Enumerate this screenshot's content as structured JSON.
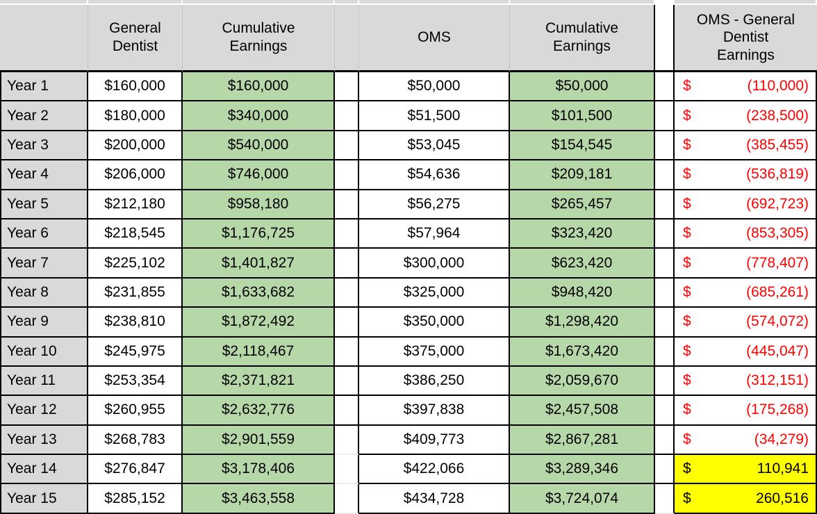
{
  "table": {
    "header": {
      "year": "",
      "general_dentist": "General\nDentist",
      "gd_cumulative": "Cumulative\nEarnings",
      "gap1": "",
      "oms": "OMS",
      "oms_cumulative": "Cumulative\nEarnings",
      "gap2": "",
      "difference": "OMS - General\nDentist\nEarnings"
    },
    "rows": [
      {
        "year": "Year 1",
        "gd": "$160,000",
        "gd_cum": "$160,000",
        "oms": "$50,000",
        "oms_cum": "$50,000",
        "diff_currency": "$",
        "diff": "(110,000)",
        "diff_negative": true
      },
      {
        "year": "Year 2",
        "gd": "$180,000",
        "gd_cum": "$340,000",
        "oms": "$51,500",
        "oms_cum": "$101,500",
        "diff_currency": "$",
        "diff": "(238,500)",
        "diff_negative": true
      },
      {
        "year": "Year 3",
        "gd": "$200,000",
        "gd_cum": "$540,000",
        "oms": "$53,045",
        "oms_cum": "$154,545",
        "diff_currency": "$",
        "diff": "(385,455)",
        "diff_negative": true
      },
      {
        "year": "Year 4",
        "gd": "$206,000",
        "gd_cum": "$746,000",
        "oms": "$54,636",
        "oms_cum": "$209,181",
        "diff_currency": "$",
        "diff": "(536,819)",
        "diff_negative": true
      },
      {
        "year": "Year 5",
        "gd": "$212,180",
        "gd_cum": "$958,180",
        "oms": "$56,275",
        "oms_cum": "$265,457",
        "diff_currency": "$",
        "diff": "(692,723)",
        "diff_negative": true
      },
      {
        "year": "Year 6",
        "gd": "$218,545",
        "gd_cum": "$1,176,725",
        "oms": "$57,964",
        "oms_cum": "$323,420",
        "diff_currency": "$",
        "diff": "(853,305)",
        "diff_negative": true
      },
      {
        "year": "Year 7",
        "gd": "$225,102",
        "gd_cum": "$1,401,827",
        "oms": "$300,000",
        "oms_cum": "$623,420",
        "diff_currency": "$",
        "diff": "(778,407)",
        "diff_negative": true
      },
      {
        "year": "Year 8",
        "gd": "$231,855",
        "gd_cum": "$1,633,682",
        "oms": "$325,000",
        "oms_cum": "$948,420",
        "diff_currency": "$",
        "diff": "(685,261)",
        "diff_negative": true
      },
      {
        "year": "Year 9",
        "gd": "$238,810",
        "gd_cum": "$1,872,492",
        "oms": "$350,000",
        "oms_cum": "$1,298,420",
        "diff_currency": "$",
        "diff": "(574,072)",
        "diff_negative": true
      },
      {
        "year": "Year 10",
        "gd": "$245,975",
        "gd_cum": "$2,118,467",
        "oms": "$375,000",
        "oms_cum": "$1,673,420",
        "diff_currency": "$",
        "diff": "(445,047)",
        "diff_negative": true
      },
      {
        "year": "Year 11",
        "gd": "$253,354",
        "gd_cum": "$2,371,821",
        "oms": "$386,250",
        "oms_cum": "$2,059,670",
        "diff_currency": "$",
        "diff": "(312,151)",
        "diff_negative": true
      },
      {
        "year": "Year 12",
        "gd": "$260,955",
        "gd_cum": "$2,632,776",
        "oms": "$397,838",
        "oms_cum": "$2,457,508",
        "diff_currency": "$",
        "diff": "(175,268)",
        "diff_negative": true
      },
      {
        "year": "Year 13",
        "gd": "$268,783",
        "gd_cum": "$2,901,559",
        "oms": "$409,773",
        "oms_cum": "$2,867,281",
        "diff_currency": "$",
        "diff": "(34,279)",
        "diff_negative": true
      },
      {
        "year": "Year 14",
        "gd": "$276,847",
        "gd_cum": "$3,178,406",
        "oms": "$422,066",
        "oms_cum": "$3,289,346",
        "diff_currency": "$",
        "diff": "110,941",
        "diff_negative": false
      },
      {
        "year": "Year 15",
        "gd": "$285,152",
        "gd_cum": "$3,463,558",
        "oms": "$434,728",
        "oms_cum": "$3,724,074",
        "diff_currency": "$",
        "diff": "260,516",
        "diff_negative": false
      }
    ],
    "colors": {
      "header_gray": "#d9d9d9",
      "row_label_gray": "#d9d9d9",
      "cumulative_green": "#b6d7a8",
      "positive_highlight_yellow": "#ffff00",
      "negative_red": "#ff0000",
      "border_black": "#000000"
    }
  }
}
